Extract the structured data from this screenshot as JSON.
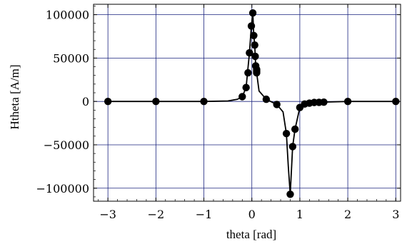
{
  "chart_data": {
    "type": "scatter",
    "title": "",
    "xlabel": "theta [rad]",
    "ylabel": "Htheta [A/m]",
    "xlim": [
      -3.3,
      3.1
    ],
    "ylim": [
      -115000,
      112000
    ],
    "xticks": [
      -3,
      -2,
      -1,
      0,
      1,
      2,
      3
    ],
    "xtick_labels": [
      "−3",
      "−2",
      "−1",
      "0",
      "1",
      "2",
      "3"
    ],
    "yticks": [
      -100000,
      -50000,
      0,
      50000,
      100000
    ],
    "ytick_labels": [
      "−100000",
      "−50000",
      "0",
      "50000",
      "100000"
    ],
    "grid": true,
    "colors": {
      "grid": "#1a237e",
      "series": "#000000"
    },
    "series": [
      {
        "kind": "points",
        "x": [
          -3,
          -2,
          -1,
          -0.2,
          -0.12,
          -0.08,
          -0.05,
          -0.01,
          0.02,
          0.04,
          0.06,
          0.07,
          0.08,
          0.1,
          0.1,
          0.1,
          0.3,
          0.52,
          0.72,
          0.8,
          0.85,
          0.9,
          1.0,
          1.1,
          1.2,
          1.3,
          1.4,
          1.5,
          2,
          3
        ],
        "y": [
          0,
          0,
          0,
          5500,
          16000,
          33000,
          56000,
          87000,
          102000,
          76000,
          65000,
          52000,
          41000,
          37000,
          35000,
          33000,
          2500,
          -3500,
          -37000,
          -107000,
          -52000,
          -32000,
          -7000,
          -3000,
          -2000,
          -1200,
          -1000,
          -800,
          0,
          0
        ]
      },
      {
        "kind": "curve",
        "x": [
          -3,
          -1,
          -0.5,
          -0.3,
          -0.2,
          -0.12,
          -0.05,
          -0.01,
          0.02,
          0.04,
          0.06,
          0.08,
          0.1,
          0.15,
          0.3,
          0.52,
          0.65,
          0.72,
          0.76,
          0.8,
          0.85,
          0.9,
          1.0,
          1.2,
          1.5,
          2,
          3
        ],
        "y": [
          0,
          0,
          500,
          2500,
          5500,
          16000,
          56000,
          87000,
          102000,
          76000,
          65000,
          41000,
          33000,
          12000,
          2500,
          -3500,
          -12000,
          -37000,
          -75000,
          -107000,
          -52000,
          -32000,
          -7000,
          -2000,
          -800,
          0,
          0
        ]
      }
    ]
  }
}
